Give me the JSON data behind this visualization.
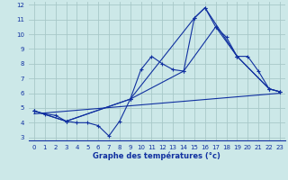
{
  "background_color": "#cce8e8",
  "grid_color": "#a8c8c8",
  "line_color": "#1030a0",
  "xlabel": "Graphe des températures (°c)",
  "xlim": [
    -0.5,
    23.5
  ],
  "ylim": [
    2.8,
    12.2
  ],
  "yticks": [
    3,
    4,
    5,
    6,
    7,
    8,
    9,
    10,
    11,
    12
  ],
  "xticks": [
    0,
    1,
    2,
    3,
    4,
    5,
    6,
    7,
    8,
    9,
    10,
    11,
    12,
    13,
    14,
    15,
    16,
    17,
    18,
    19,
    20,
    21,
    22,
    23
  ],
  "series1_x": [
    0,
    1,
    2,
    3,
    4,
    5,
    6,
    7,
    8,
    9,
    10,
    11,
    12,
    13,
    14,
    15,
    16,
    17,
    18,
    19,
    20,
    21,
    22,
    23
  ],
  "series1_y": [
    4.8,
    4.6,
    4.5,
    4.1,
    4.0,
    4.0,
    3.8,
    3.1,
    4.1,
    5.6,
    7.6,
    8.5,
    8.0,
    7.6,
    7.5,
    11.1,
    11.8,
    10.5,
    9.8,
    8.5,
    8.5,
    7.5,
    6.3,
    6.1
  ],
  "series2_x": [
    0,
    3,
    9,
    15,
    16,
    19,
    22,
    23
  ],
  "series2_y": [
    4.8,
    4.1,
    5.6,
    11.1,
    11.8,
    8.5,
    6.3,
    6.1
  ],
  "series3_x": [
    0,
    3,
    9,
    14,
    17,
    19,
    22,
    23
  ],
  "series3_y": [
    4.8,
    4.1,
    5.6,
    7.5,
    10.5,
    8.5,
    6.3,
    6.1
  ],
  "series4_x": [
    0,
    23
  ],
  "series4_y": [
    4.6,
    6.0
  ]
}
